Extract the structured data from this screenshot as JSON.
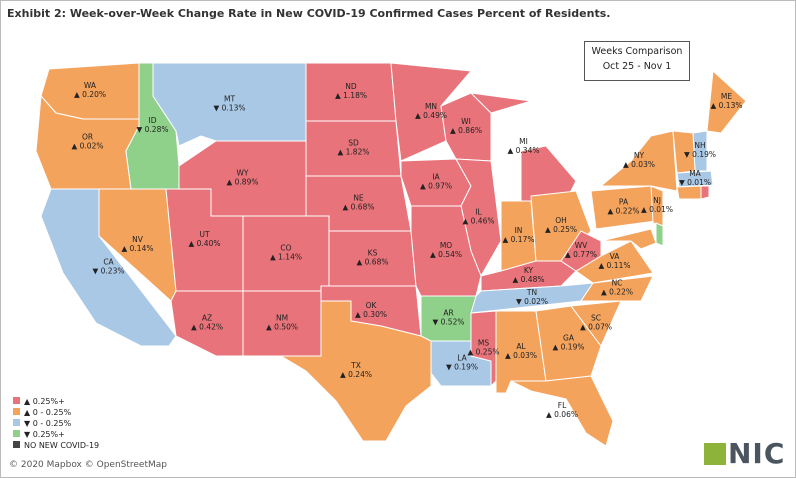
{
  "title": "Exhibit 2: Week-over-Week Change Rate in New COVID-19 Confirmed Cases Percent of Residents.",
  "comparison": {
    "heading": "Weeks Comparison",
    "period": "Oct 25 - Nov 1"
  },
  "states": [
    {
      "abbr": "WA",
      "label": "▲ 0.20%",
      "color": "#f4a35c"
    },
    {
      "abbr": "OR",
      "label": "▲ 0.02%",
      "color": "#f4a35c"
    },
    {
      "abbr": "CA",
      "label": "▼ 0.23%",
      "color": "#a9c8e6"
    },
    {
      "abbr": "NV",
      "label": "▲ 0.14%",
      "color": "#f4a35c"
    },
    {
      "abbr": "ID",
      "label": "▼ 0.28%",
      "color": "#8fd08a"
    },
    {
      "abbr": "MT",
      "label": "▼ 0.13%",
      "color": "#a9c8e6"
    },
    {
      "abbr": "WY",
      "label": "▲ 0.89%",
      "color": "#e8737a"
    },
    {
      "abbr": "UT",
      "label": "▲ 0.40%",
      "color": "#e8737a"
    },
    {
      "abbr": "AZ",
      "label": "▲ 0.42%",
      "color": "#e8737a"
    },
    {
      "abbr": "CO",
      "label": "▲ 1.14%",
      "color": "#e8737a"
    },
    {
      "abbr": "NM",
      "label": "▲ 0.50%",
      "color": "#e8737a"
    },
    {
      "abbr": "ND",
      "label": "▲ 1.18%",
      "color": "#e8737a"
    },
    {
      "abbr": "SD",
      "label": "▲ 1.82%",
      "color": "#e8737a"
    },
    {
      "abbr": "NE",
      "label": "▲ 0.68%",
      "color": "#e8737a"
    },
    {
      "abbr": "KS",
      "label": "▲ 0.68%",
      "color": "#e8737a"
    },
    {
      "abbr": "OK",
      "label": "▲ 0.30%",
      "color": "#e8737a"
    },
    {
      "abbr": "TX",
      "label": "▲ 0.24%",
      "color": "#f4a35c"
    },
    {
      "abbr": "MN",
      "label": "▲ 0.49%",
      "color": "#e8737a"
    },
    {
      "abbr": "IA",
      "label": "▲ 0.97%",
      "color": "#e8737a"
    },
    {
      "abbr": "WI",
      "label": "▲ 0.86%",
      "color": "#e8737a"
    },
    {
      "abbr": "IL",
      "label": "▲ 0.46%",
      "color": "#e8737a"
    },
    {
      "abbr": "MO",
      "label": "▲ 0.54%",
      "color": "#e8737a"
    },
    {
      "abbr": "AR",
      "label": "▼ 0.52%",
      "color": "#8fd08a"
    },
    {
      "abbr": "LA",
      "label": "▼ 0.19%",
      "color": "#a9c8e6"
    },
    {
      "abbr": "MS",
      "label": "▲ 0.25%",
      "color": "#e8737a"
    },
    {
      "abbr": "MI",
      "label": "▲ 0.34%",
      "color": "#e8737a"
    },
    {
      "abbr": "IN",
      "label": "▲ 0.17%",
      "color": "#f4a35c"
    },
    {
      "abbr": "OH",
      "label": "▲ 0.25%",
      "color": "#f4a35c"
    },
    {
      "abbr": "KY",
      "label": "▲ 0.48%",
      "color": "#e8737a"
    },
    {
      "abbr": "TN",
      "label": "▼ 0.02%",
      "color": "#a9c8e6"
    },
    {
      "abbr": "AL",
      "label": "▲ 0.03%",
      "color": "#f4a35c"
    },
    {
      "abbr": "GA",
      "label": "▲ 0.19%",
      "color": "#f4a35c"
    },
    {
      "abbr": "FL",
      "label": "▲ 0.06%",
      "color": "#f4a35c"
    },
    {
      "abbr": "SC",
      "label": "▲ 0.07%",
      "color": "#f4a35c"
    },
    {
      "abbr": "NC",
      "label": "▲ 0.22%",
      "color": "#f4a35c"
    },
    {
      "abbr": "VA",
      "label": "▲ 0.11%",
      "color": "#f4a35c"
    },
    {
      "abbr": "WV",
      "label": "▲ 0.77%",
      "color": "#e8737a"
    },
    {
      "abbr": "PA",
      "label": "▲ 0.22%",
      "color": "#f4a35c"
    },
    {
      "abbr": "NY",
      "label": "▲ 0.03%",
      "color": "#f4a35c"
    },
    {
      "abbr": "NJ",
      "label": "▲ 0.01%",
      "color": "#f4a35c"
    },
    {
      "abbr": "ME",
      "label": "▲ 0.13%",
      "color": "#f4a35c"
    },
    {
      "abbr": "NH",
      "label": "▼ 0.19%",
      "color": "#a9c8e6"
    },
    {
      "abbr": "MA",
      "label": "▼ 0.01%",
      "color": "#a9c8e6"
    }
  ],
  "legend": [
    {
      "label": "▲ 0.25%+",
      "color": "#e8737a"
    },
    {
      "label": "▲ 0 - 0.25%",
      "color": "#f4a35c"
    },
    {
      "label": "▼ 0 - 0.25%",
      "color": "#a9c8e6"
    },
    {
      "label": "▼ 0.25%+",
      "color": "#8fd08a"
    },
    {
      "label": "NO NEW COVID-19",
      "color": "#444444"
    }
  ],
  "footer": "© 2020 Mapbox © OpenStreetMap",
  "logo": "NIC"
}
